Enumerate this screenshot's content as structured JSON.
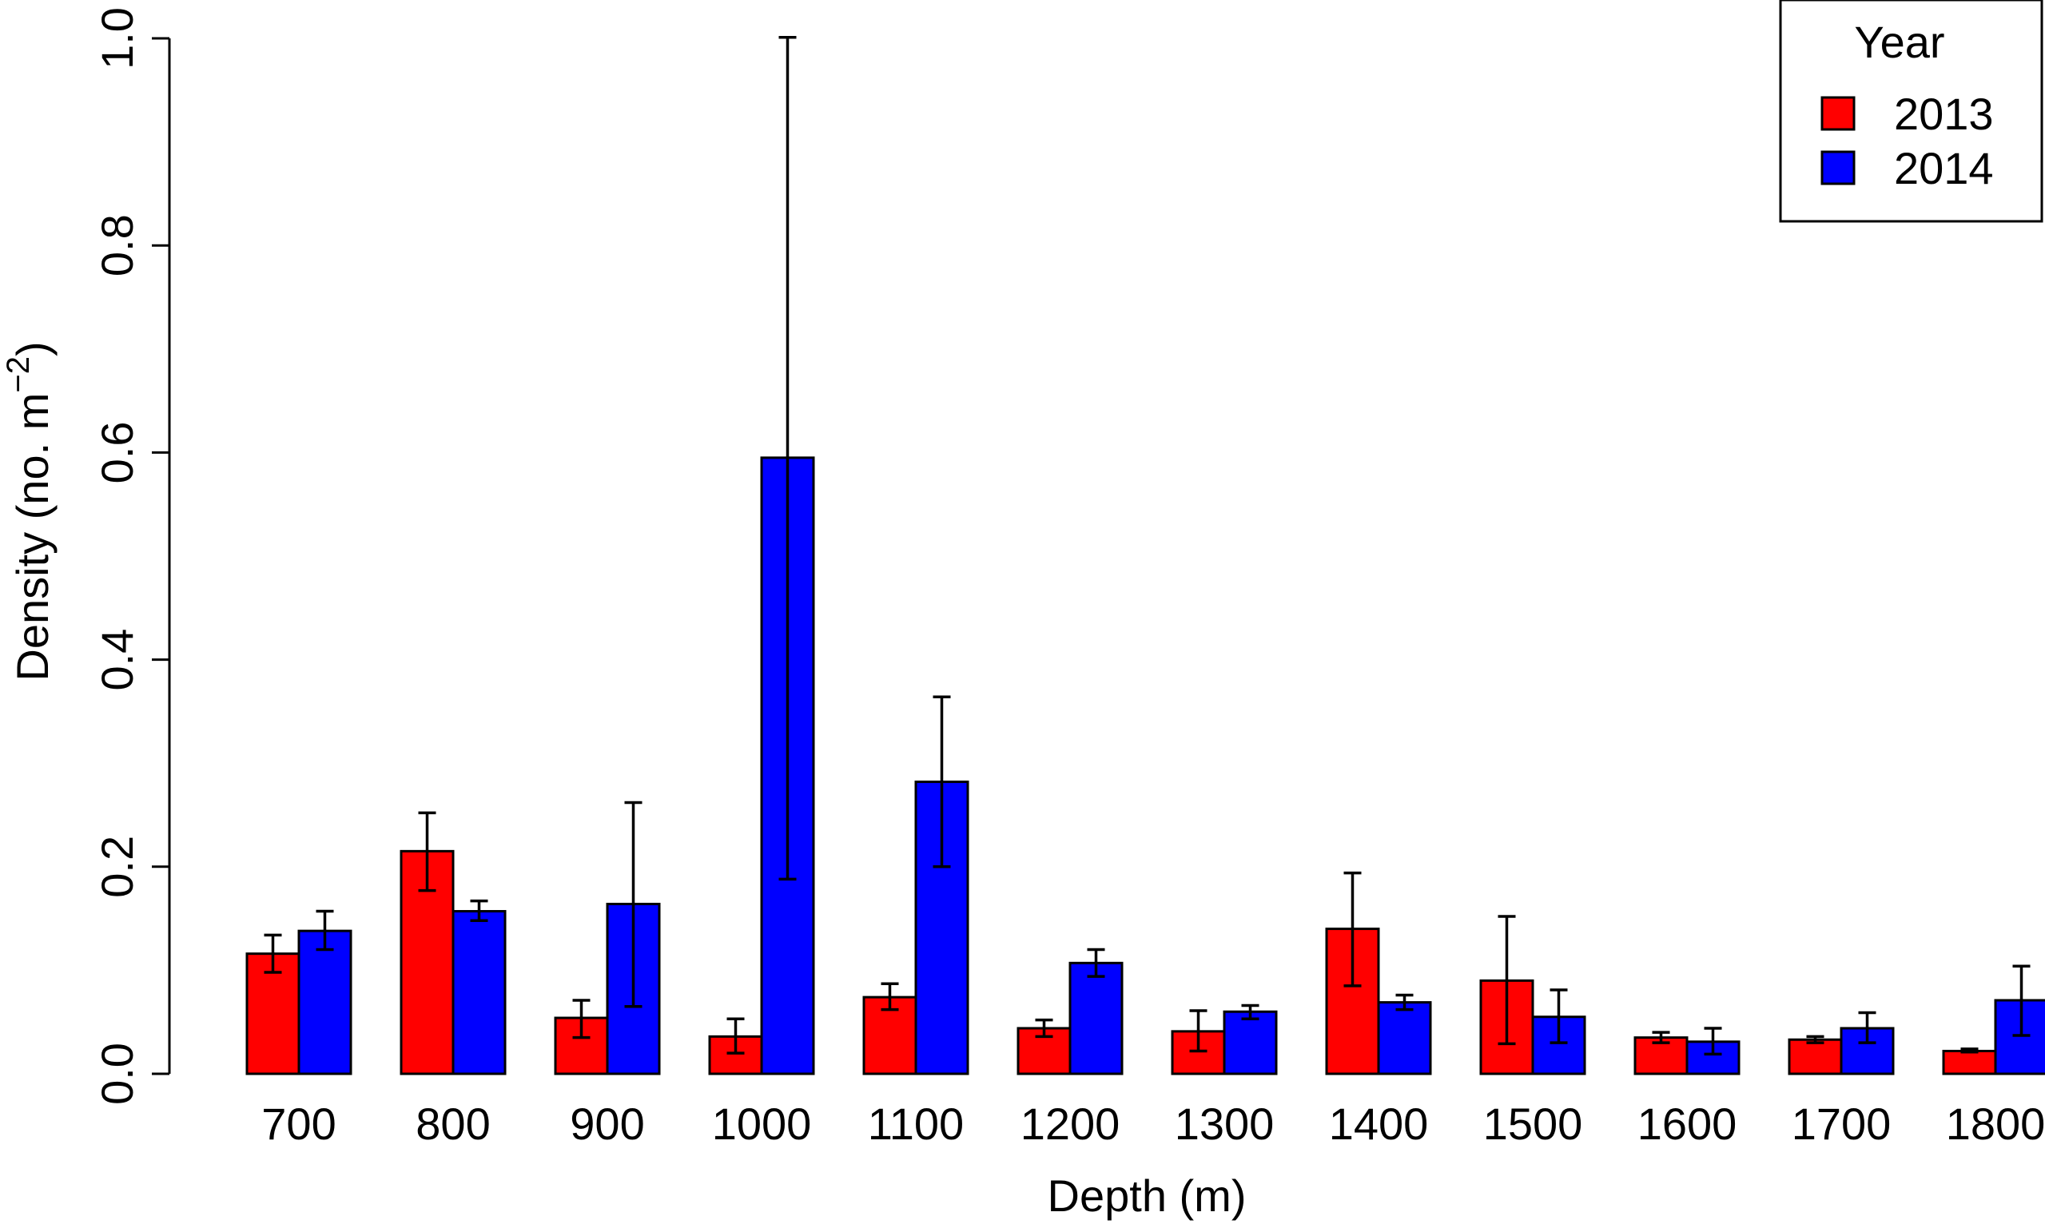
{
  "chart_data": {
    "type": "bar",
    "title": "",
    "xlabel": "Depth (m)",
    "ylabel": {
      "main": "Density (no. m",
      "superscript": "−2",
      "close": ")"
    },
    "categories": [
      "700",
      "800",
      "900",
      "1000",
      "1100",
      "1200",
      "1300",
      "1400",
      "1500",
      "1600",
      "1700",
      "1800"
    ],
    "ylim": [
      0,
      1.0
    ],
    "yticks": [
      "0.0",
      "0.2",
      "0.4",
      "0.6",
      "0.8",
      "1.0"
    ],
    "ytick_values": [
      0,
      0.2,
      0.4,
      0.6,
      0.8,
      1.0
    ],
    "grid": false,
    "legend": {
      "title": "Year",
      "placement": "top-right"
    },
    "series": [
      {
        "name": "2013",
        "color": "#ff0000",
        "values": [
          0.116,
          0.215,
          0.054,
          0.036,
          0.074,
          0.044,
          0.041,
          0.14,
          0.09,
          0.035,
          0.033,
          0.022
        ],
        "err_low": [
          0.098,
          0.177,
          0.035,
          0.02,
          0.062,
          0.036,
          0.022,
          0.085,
          0.029,
          0.03,
          0.03,
          0.021
        ],
        "err_high": [
          0.134,
          0.252,
          0.071,
          0.053,
          0.087,
          0.052,
          0.061,
          0.194,
          0.152,
          0.04,
          0.036,
          0.024
        ]
      },
      {
        "name": "2014",
        "color": "#0000ff",
        "values": [
          0.138,
          0.157,
          0.164,
          0.595,
          0.282,
          0.107,
          0.06,
          0.069,
          0.055,
          0.031,
          0.044,
          0.071
        ],
        "err_low": [
          0.12,
          0.148,
          0.065,
          0.188,
          0.2,
          0.094,
          0.053,
          0.062,
          0.03,
          0.019,
          0.03,
          0.037
        ],
        "err_high": [
          0.157,
          0.167,
          0.262,
          1.001,
          0.364,
          0.12,
          0.066,
          0.076,
          0.081,
          0.044,
          0.059,
          0.104
        ]
      }
    ]
  }
}
